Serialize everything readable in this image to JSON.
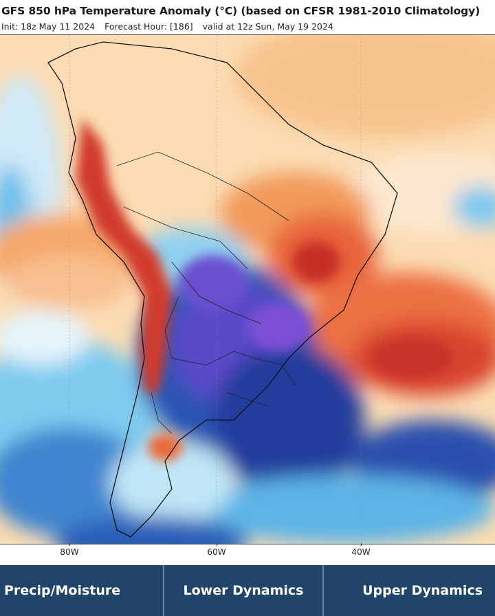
{
  "header": {
    "title": "GFS 850 hPa Temperature Anomaly (°C) (based on CFSR 1981-2010 Climatology)",
    "init": "Init: 18z May 11 2024",
    "forecast_hour": "Forecast Hour: [186]",
    "valid": "valid at 12z Sun, May 19 2024"
  },
  "map": {
    "region": "South America",
    "longitude_labels": [
      "80W",
      "60W",
      "40W"
    ],
    "colors": {
      "strong_warm": "#c9312a",
      "warm": "#ea6a3a",
      "mild_warm": "#f6a86a",
      "slight_warm": "#fbd6a7",
      "neutral": "#fdf3e6",
      "slight_cold": "#bfe6f6",
      "cold": "#5fbde8",
      "colder": "#2f6fc1",
      "very_cold": "#223d9c",
      "extreme_cold": "#7b50d6"
    }
  },
  "nav": {
    "items": [
      {
        "label": "Precip/Moisture"
      },
      {
        "label": "Lower Dynamics"
      },
      {
        "label": "Upper Dynamics"
      }
    ]
  }
}
